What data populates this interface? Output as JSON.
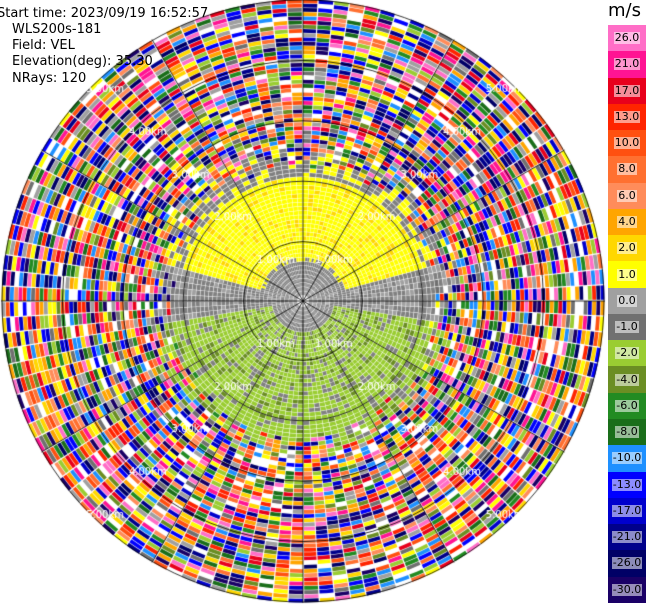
{
  "header": {
    "start_time": "Start time: 2023/09/19 16:52:57",
    "instrument": "WLS200s-181",
    "field": "Field: VEL",
    "elevation": "Elevation(deg): 35.30",
    "nrays": "NRays: 120"
  },
  "colorbar": {
    "unit": "m/s",
    "levels": [
      "26.0",
      "21.0",
      "17.0",
      "13.0",
      "10.0",
      "8.0",
      "6.0",
      "4.0",
      "2.0",
      "1.0",
      "0.0",
      "-1.0",
      "-2.0",
      "-4.0",
      "-6.0",
      "-8.0",
      "-10.0",
      "-13.0",
      "-17.0",
      "-21.0",
      "-26.0",
      "-30.0"
    ],
    "colors": [
      "#ff6ec7",
      "#ff1493",
      "#e8001c",
      "#ff2400",
      "#ff5010",
      "#ff7030",
      "#ff8c5a",
      "#ffa500",
      "#ffd700",
      "#ffff00",
      "#a0a0a0",
      "#707070",
      "#9acd32",
      "#6b8e23",
      "#228b22",
      "#1a6e1a",
      "#1e90ff",
      "#0000ff",
      "#0000cd",
      "#00008b",
      "#000066",
      "#1a0066"
    ]
  },
  "chart_data": {
    "type": "heatmap",
    "subtype": "radar PPI (polar)",
    "field": "VEL",
    "units": "m/s",
    "n_rays": 120,
    "elevation_deg": 35.3,
    "range_ring_labels": [
      "1.00km",
      "2.00km",
      "3.00km",
      "4.00km",
      "5.00km"
    ],
    "ring_label_text": {
      "r1": "1.00km",
      "r2": "2.00km",
      "r3": "3.00km",
      "r4": "4.00km",
      "r5": "5.00km"
    },
    "color_scale_min": -30.0,
    "color_scale_max": 26.0,
    "pattern_summary": "Near field (<2 km) shows positive velocities (yellow, ~2 m/s) to the north and negative (olive/green, ~-2 to -4 m/s) to the south, grey (~0 m/s) elsewhere; beyond ~2.5 km data are noise with random colors."
  }
}
